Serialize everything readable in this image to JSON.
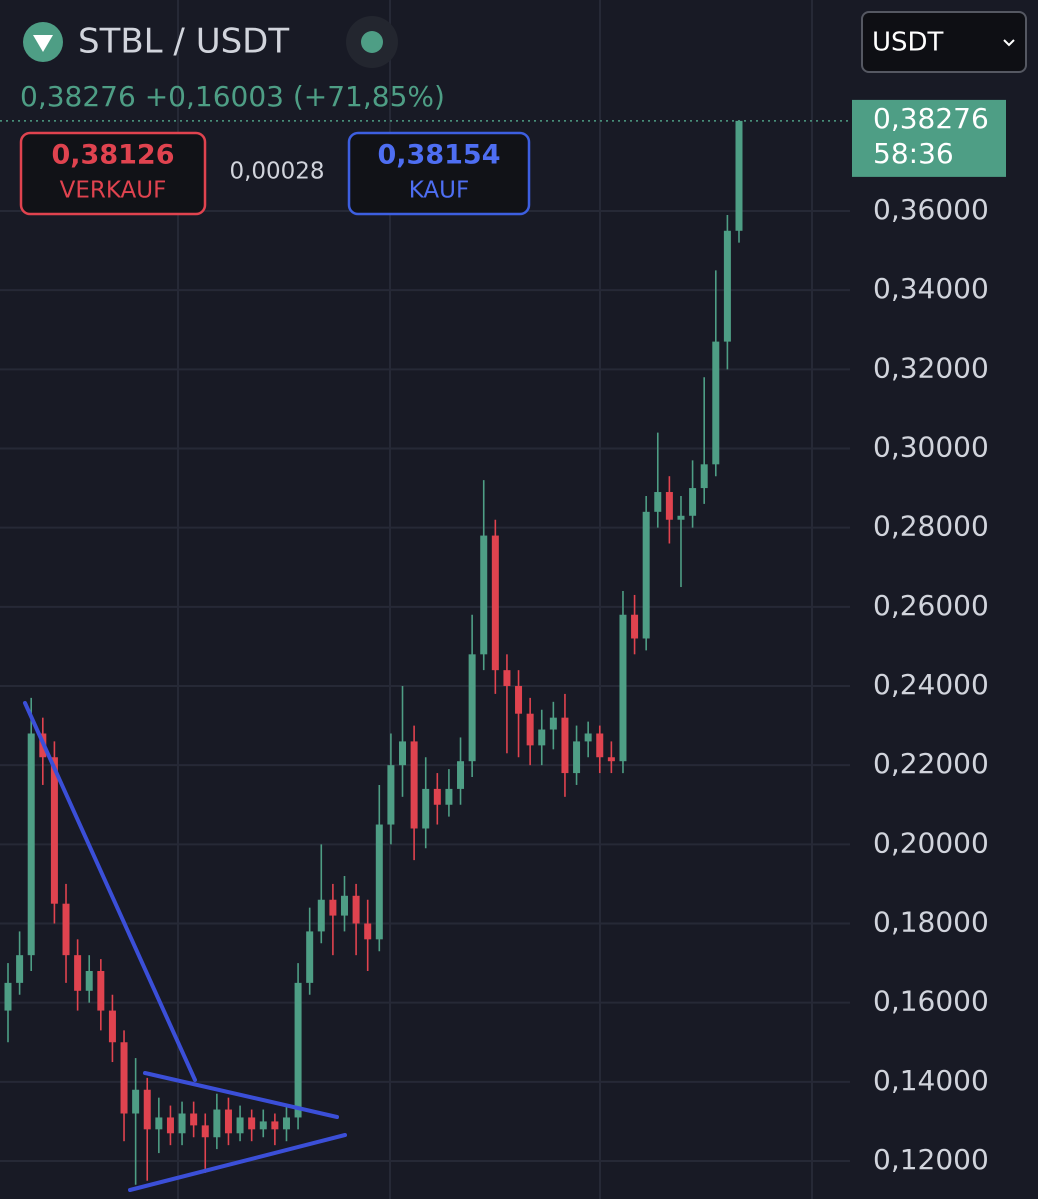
{
  "chart_data": {
    "type": "candlestick",
    "title": "STBL / USDT",
    "last_price": "0,38276",
    "change": "+0,16003",
    "change_pct": "(+71,85%)",
    "sell_price": "0,38126",
    "sell_label": "VERKAUF",
    "spread": "0,00028",
    "buy_price": "0,38154",
    "buy_label": "KAUF",
    "currency": "USDT",
    "countdown": "58:36",
    "up_color": "#4e9e85",
    "down_color": "#e0434f",
    "grid": true,
    "ylim": [
      0.1104,
      0.4133
    ],
    "yticks": [
      {
        "value": 0.12,
        "label": "0,12000"
      },
      {
        "value": 0.14,
        "label": "0,14000"
      },
      {
        "value": 0.16,
        "label": "0,16000"
      },
      {
        "value": 0.18,
        "label": "0,18000"
      },
      {
        "value": 0.2,
        "label": "0,20000"
      },
      {
        "value": 0.22,
        "label": "0,22000"
      },
      {
        "value": 0.24,
        "label": "0,24000"
      },
      {
        "value": 0.26,
        "label": "0,26000"
      },
      {
        "value": 0.28,
        "label": "0,28000"
      },
      {
        "value": 0.3,
        "label": "0,30000"
      },
      {
        "value": 0.32,
        "label": "0,32000"
      },
      {
        "value": 0.34,
        "label": "0,34000"
      },
      {
        "value": 0.36,
        "label": "0,36000"
      }
    ],
    "open": [
      0.158,
      0.165,
      0.172,
      0.228,
      0.222,
      0.185,
      0.172,
      0.163,
      0.168,
      0.158,
      0.15,
      0.132,
      0.138,
      0.128,
      0.131,
      0.127,
      0.132,
      0.129,
      0.126,
      0.133,
      0.127,
      0.131,
      0.128,
      0.13,
      0.128,
      0.131,
      0.165,
      0.178,
      0.186,
      0.182,
      0.187,
      0.18,
      0.176,
      0.205,
      0.22,
      0.226,
      0.204,
      0.214,
      0.21,
      0.214,
      0.221,
      0.248,
      0.278,
      0.244,
      0.24,
      0.233,
      0.225,
      0.229,
      0.232,
      0.218,
      0.226,
      0.228,
      0.222,
      0.221,
      0.258,
      0.252,
      0.284,
      0.289,
      0.282,
      0.283,
      0.29,
      0.296,
      0.327,
      0.355
    ],
    "high": [
      0.17,
      0.178,
      0.237,
      0.232,
      0.226,
      0.19,
      0.176,
      0.172,
      0.171,
      0.162,
      0.153,
      0.146,
      0.141,
      0.136,
      0.134,
      0.135,
      0.135,
      0.132,
      0.137,
      0.136,
      0.134,
      0.133,
      0.133,
      0.132,
      0.134,
      0.17,
      0.184,
      0.2,
      0.19,
      0.192,
      0.19,
      0.186,
      0.215,
      0.228,
      0.24,
      0.23,
      0.222,
      0.218,
      0.219,
      0.227,
      0.258,
      0.292,
      0.282,
      0.248,
      0.244,
      0.237,
      0.234,
      0.236,
      0.238,
      0.23,
      0.231,
      0.23,
      0.226,
      0.264,
      0.263,
      0.288,
      0.304,
      0.293,
      0.288,
      0.297,
      0.318,
      0.345,
      0.359,
      0.3827
    ],
    "low": [
      0.15,
      0.162,
      0.168,
      0.215,
      0.18,
      0.165,
      0.158,
      0.16,
      0.153,
      0.145,
      0.125,
      0.114,
      0.115,
      0.122,
      0.124,
      0.124,
      0.126,
      0.117,
      0.123,
      0.124,
      0.125,
      0.125,
      0.126,
      0.124,
      0.125,
      0.128,
      0.162,
      0.175,
      0.172,
      0.178,
      0.172,
      0.168,
      0.173,
      0.2,
      0.212,
      0.196,
      0.199,
      0.205,
      0.207,
      0.21,
      0.217,
      0.244,
      0.238,
      0.223,
      0.222,
      0.22,
      0.22,
      0.224,
      0.212,
      0.215,
      0.222,
      0.218,
      0.218,
      0.218,
      0.248,
      0.249,
      0.28,
      0.276,
      0.265,
      0.28,
      0.286,
      0.293,
      0.32,
      0.352
    ],
    "close": [
      0.165,
      0.172,
      0.228,
      0.222,
      0.185,
      0.172,
      0.163,
      0.168,
      0.158,
      0.15,
      0.132,
      0.138,
      0.128,
      0.131,
      0.127,
      0.132,
      0.129,
      0.126,
      0.133,
      0.127,
      0.131,
      0.128,
      0.13,
      0.128,
      0.131,
      0.165,
      0.178,
      0.186,
      0.182,
      0.187,
      0.18,
      0.176,
      0.205,
      0.22,
      0.226,
      0.204,
      0.214,
      0.21,
      0.214,
      0.221,
      0.248,
      0.278,
      0.244,
      0.24,
      0.233,
      0.225,
      0.229,
      0.232,
      0.218,
      0.226,
      0.228,
      0.222,
      0.221,
      0.258,
      0.252,
      0.284,
      0.289,
      0.282,
      0.283,
      0.29,
      0.296,
      0.327,
      0.355,
      0.38276
    ]
  }
}
